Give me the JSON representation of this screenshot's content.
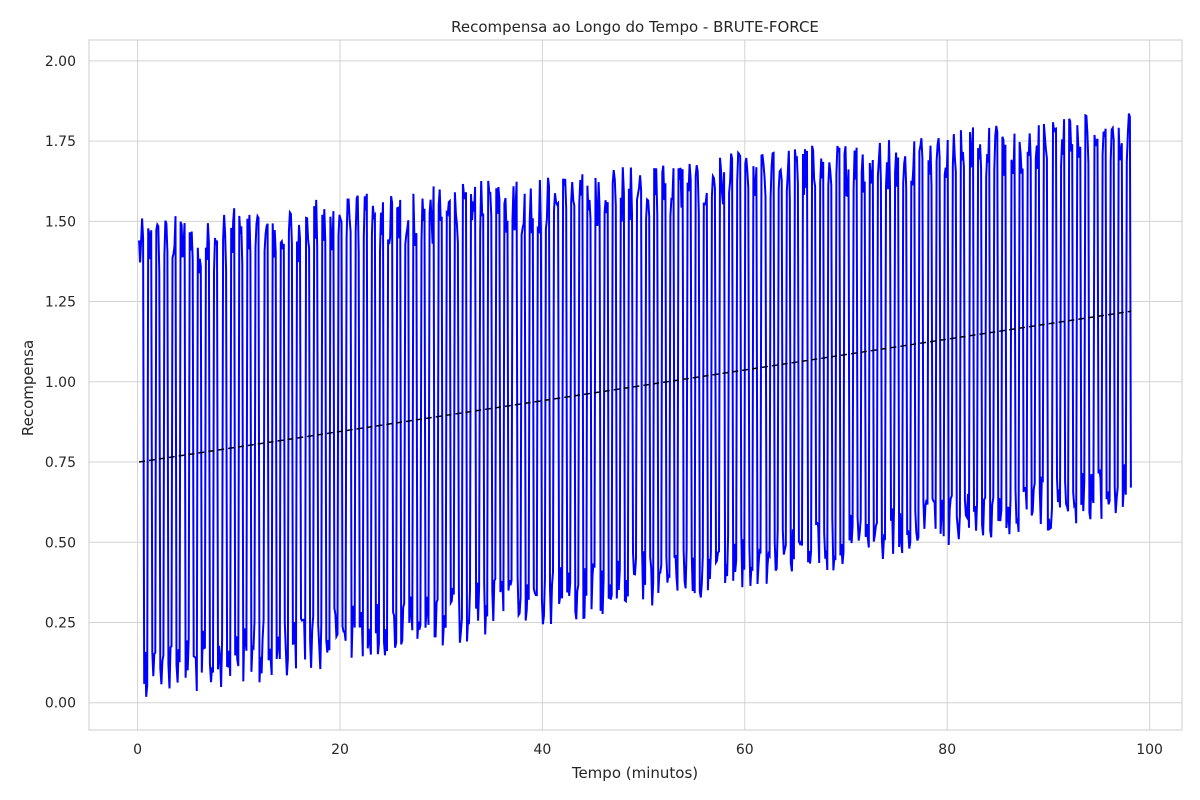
{
  "chart_data": {
    "type": "line",
    "title": "Recompensa ao Longo do Tempo - BRUTE-FORCE",
    "xlabel": "Tempo (minutos)",
    "ylabel": "Recompensa",
    "xlim": [
      -4.8,
      103.2
    ],
    "ylim": [
      -0.085,
      2.065
    ],
    "xticks": [
      0,
      20,
      40,
      60,
      80,
      100
    ],
    "yticks": [
      0.0,
      0.25,
      0.5,
      0.75,
      1.0,
      1.25,
      1.5,
      1.75,
      2.0
    ],
    "xtick_labels": [
      "0",
      "20",
      "40",
      "60",
      "80",
      "100"
    ],
    "ytick_labels": [
      "0.00",
      "0.25",
      "0.50",
      "0.75",
      "1.00",
      "1.25",
      "1.50",
      "1.75",
      "2.00"
    ],
    "grid": true,
    "series": [
      {
        "color": "#0000ff",
        "style": "solid",
        "generator": {
          "x_start": 0.15,
          "x_end": 98.2,
          "dx": 0.1,
          "trend_start": 0.75,
          "trend_slope": 0.00478,
          "period_minutes": 0.82,
          "amplitude_start": 0.66,
          "amplitude_end": 0.55
        }
      },
      {
        "color": "#000000",
        "style": "dashed",
        "x": [
          0.15,
          98.2
        ],
        "y": [
          0.75,
          1.22
        ]
      }
    ]
  }
}
